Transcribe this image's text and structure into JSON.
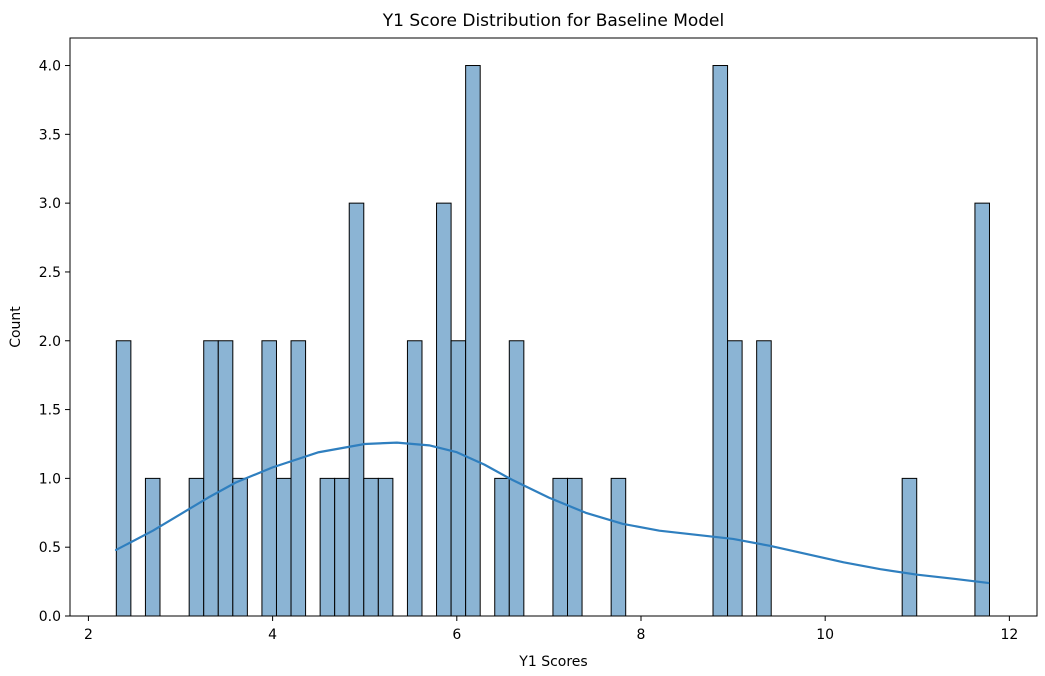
{
  "chart_data": {
    "type": "bar",
    "title": "Y1 Score Distribution for Baseline Model",
    "xlabel": "Y1 Scores",
    "ylabel": "Count",
    "xlim": [
      1.8,
      12.3
    ],
    "ylim": [
      0,
      4.2
    ],
    "x_ticks": [
      2,
      4,
      6,
      8,
      10,
      12
    ],
    "y_ticks": [
      0.0,
      0.5,
      1.0,
      1.5,
      2.0,
      2.5,
      3.0,
      3.5,
      4.0
    ],
    "grid": false,
    "bin_width": 0.158,
    "colors": {
      "bar_fill": "#8bb4d4",
      "bar_edge": "#000000",
      "kde_line": "#2f7fbf"
    },
    "bins": [
      {
        "x": 2.303,
        "count": 2
      },
      {
        "x": 2.619,
        "count": 1
      },
      {
        "x": 3.094,
        "count": 1
      },
      {
        "x": 3.252,
        "count": 2
      },
      {
        "x": 3.41,
        "count": 2
      },
      {
        "x": 3.568,
        "count": 1
      },
      {
        "x": 3.884,
        "count": 2
      },
      {
        "x": 4.042,
        "count": 1
      },
      {
        "x": 4.2,
        "count": 2
      },
      {
        "x": 4.516,
        "count": 1
      },
      {
        "x": 4.674,
        "count": 1
      },
      {
        "x": 4.832,
        "count": 3
      },
      {
        "x": 4.99,
        "count": 1
      },
      {
        "x": 5.148,
        "count": 1
      },
      {
        "x": 5.464,
        "count": 2
      },
      {
        "x": 5.78,
        "count": 3
      },
      {
        "x": 5.938,
        "count": 2
      },
      {
        "x": 6.096,
        "count": 4
      },
      {
        "x": 6.412,
        "count": 1
      },
      {
        "x": 6.57,
        "count": 2
      },
      {
        "x": 7.044,
        "count": 1
      },
      {
        "x": 7.202,
        "count": 1
      },
      {
        "x": 7.676,
        "count": 1
      },
      {
        "x": 8.782,
        "count": 4
      },
      {
        "x": 8.94,
        "count": 2
      },
      {
        "x": 9.256,
        "count": 2
      },
      {
        "x": 10.836,
        "count": 1
      },
      {
        "x": 11.626,
        "count": 3
      }
    ],
    "kde": {
      "x": [
        2.3,
        2.7,
        3.0,
        3.3,
        3.6,
        4.0,
        4.5,
        5.0,
        5.35,
        5.7,
        6.0,
        6.3,
        6.6,
        7.0,
        7.4,
        7.8,
        8.2,
        8.6,
        9.0,
        9.4,
        9.8,
        10.2,
        10.6,
        11.0,
        11.4,
        11.77
      ],
      "y": [
        0.48,
        0.62,
        0.74,
        0.86,
        0.97,
        1.08,
        1.19,
        1.25,
        1.26,
        1.24,
        1.19,
        1.1,
        0.99,
        0.86,
        0.75,
        0.67,
        0.62,
        0.59,
        0.56,
        0.51,
        0.45,
        0.39,
        0.34,
        0.3,
        0.27,
        0.24
      ]
    }
  }
}
